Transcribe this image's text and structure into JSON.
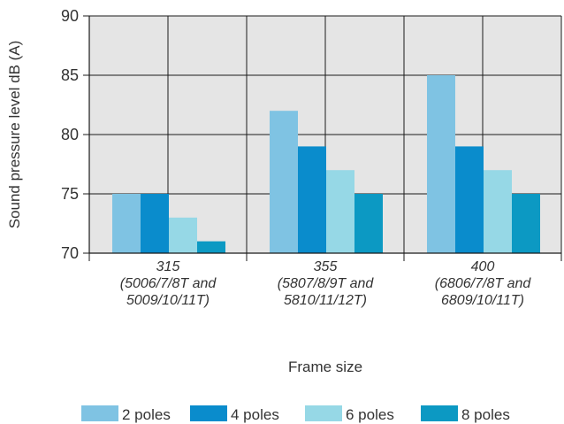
{
  "chart_data": {
    "type": "bar",
    "categories": [
      [
        "315",
        "(5006/7/8T and",
        "5009/10/11T)"
      ],
      [
        "355",
        "(5807/8/9T and",
        "5810/11/12T)"
      ],
      [
        "400",
        "(6806/7/8T and",
        "6809/10/11T)"
      ]
    ],
    "series": [
      {
        "name": "2 poles",
        "color": "#7fc3e3",
        "values": [
          75,
          82,
          85
        ]
      },
      {
        "name": "4 poles",
        "color": "#0a8ccc",
        "values": [
          75,
          79,
          79
        ]
      },
      {
        "name": "6 poles",
        "color": "#96d8e6",
        "values": [
          73,
          77,
          77
        ]
      },
      {
        "name": "8 poles",
        "color": "#0c99c3",
        "values": [
          71,
          75,
          75
        ]
      }
    ],
    "xlabel": "Frame size",
    "ylabel": "Sound pressure level dB (A)",
    "ylim": [
      70,
      90
    ],
    "yticks": [
      70,
      75,
      80,
      85,
      90
    ],
    "grid": true,
    "plot_background": "#e5e5e5",
    "legend_position": "bottom"
  }
}
